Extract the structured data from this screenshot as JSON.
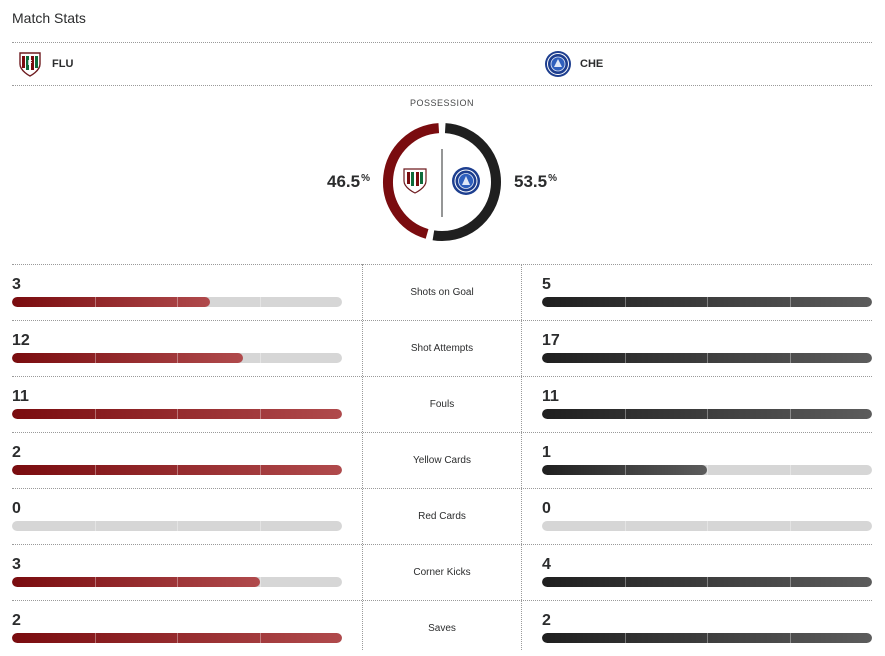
{
  "title": "Match Stats",
  "teams": {
    "home": {
      "abbr": "FLU",
      "crest_icon": "fluminense-crest-icon",
      "color": "#7a0c0f"
    },
    "away": {
      "abbr": "CHE",
      "crest_icon": "chelsea-crest-icon",
      "color": "#1f1f1f"
    }
  },
  "possession": {
    "label": "POSSESSION",
    "home_value": "46.5",
    "away_value": "53.5",
    "unit": "%",
    "home_fraction": 0.465,
    "away_fraction": 0.535
  },
  "stats": [
    {
      "label": "Shots on Goal",
      "home": "3",
      "away": "5",
      "home_share": 0.6,
      "away_share": 1.0
    },
    {
      "label": "Shot Attempts",
      "home": "12",
      "away": "17",
      "home_share": 0.7,
      "away_share": 1.0
    },
    {
      "label": "Fouls",
      "home": "11",
      "away": "11",
      "home_share": 1.0,
      "away_share": 1.0
    },
    {
      "label": "Yellow Cards",
      "home": "2",
      "away": "1",
      "home_share": 1.0,
      "away_share": 0.5
    },
    {
      "label": "Red Cards",
      "home": "0",
      "away": "0",
      "home_share": 0,
      "away_share": 0
    },
    {
      "label": "Corner Kicks",
      "home": "3",
      "away": "4",
      "home_share": 0.75,
      "away_share": 1.0
    },
    {
      "label": "Saves",
      "home": "2",
      "away": "2",
      "home_share": 1.0,
      "away_share": 1.0
    }
  ]
}
